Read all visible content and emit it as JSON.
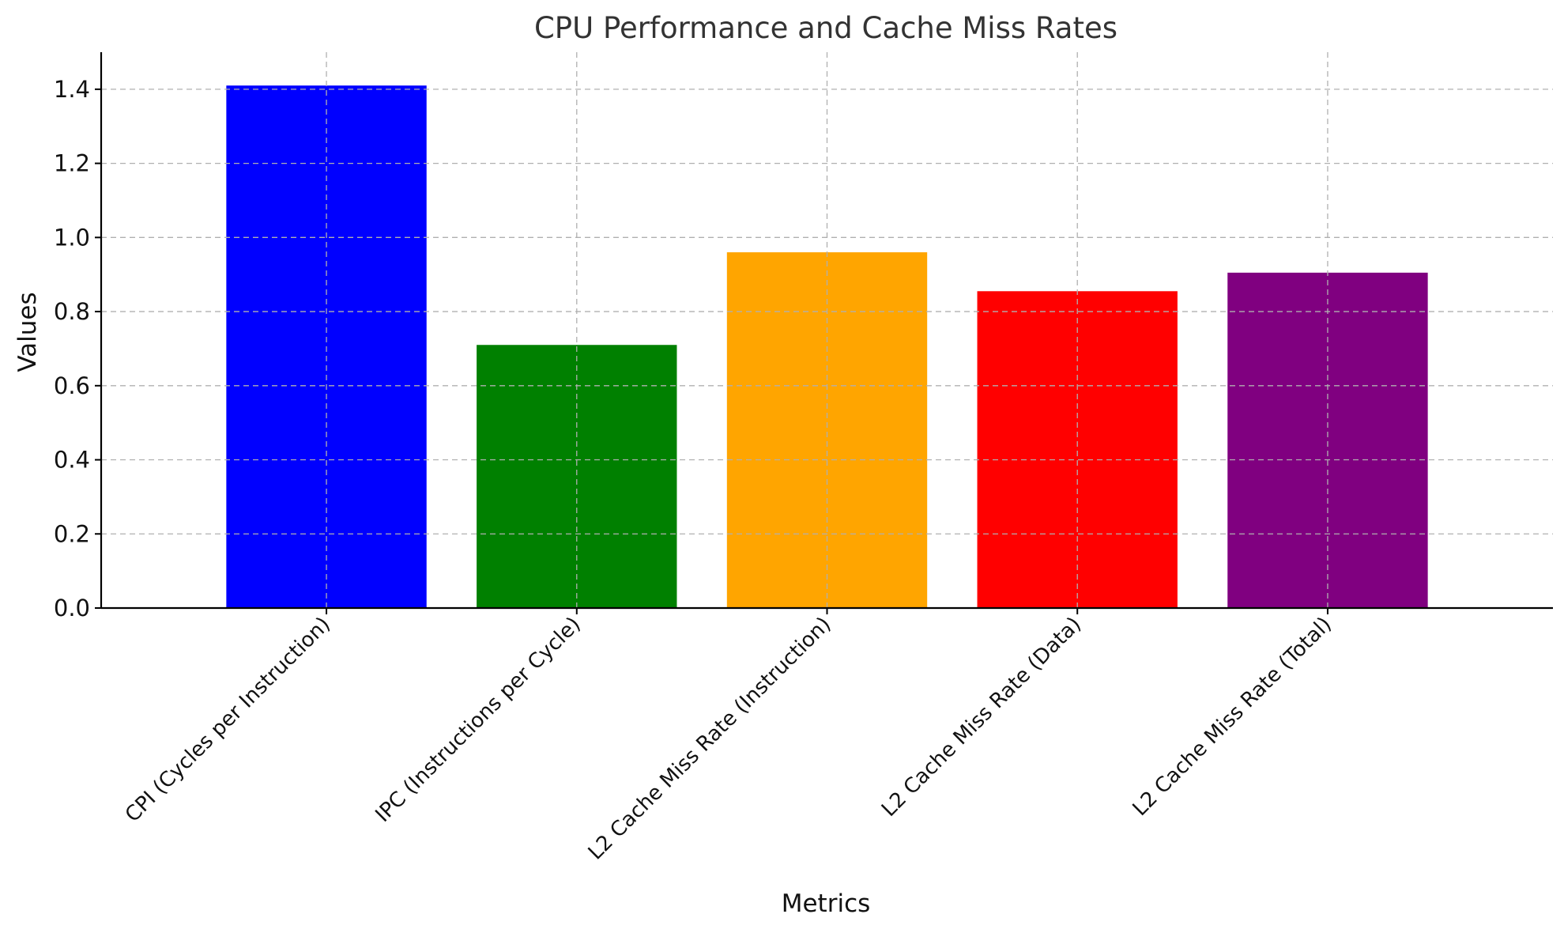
{
  "chart_data": {
    "type": "bar",
    "title": "CPU Performance and Cache Miss Rates",
    "xlabel": "Metrics",
    "ylabel": "Values",
    "categories": [
      "CPI (Cycles per Instruction)",
      "IPC (Instructions per Cycle)",
      "L2 Cache Miss Rate (Instruction)",
      "L2 Cache Miss Rate (Data)",
      "L2 Cache Miss Rate (Total)"
    ],
    "values": [
      1.41,
      0.71,
      0.96,
      0.855,
      0.905
    ],
    "colors": [
      "#0000ff",
      "#008000",
      "#ffa500",
      "#ff0000",
      "#800080"
    ],
    "ylim": [
      0,
      1.5
    ],
    "yticks": [
      0.0,
      0.2,
      0.4,
      0.6,
      0.8,
      1.0,
      1.2,
      1.4
    ],
    "ytick_labels": [
      "0.0",
      "0.2",
      "0.4",
      "0.6",
      "0.8",
      "1.0",
      "1.2",
      "1.4"
    ],
    "grid": true
  }
}
